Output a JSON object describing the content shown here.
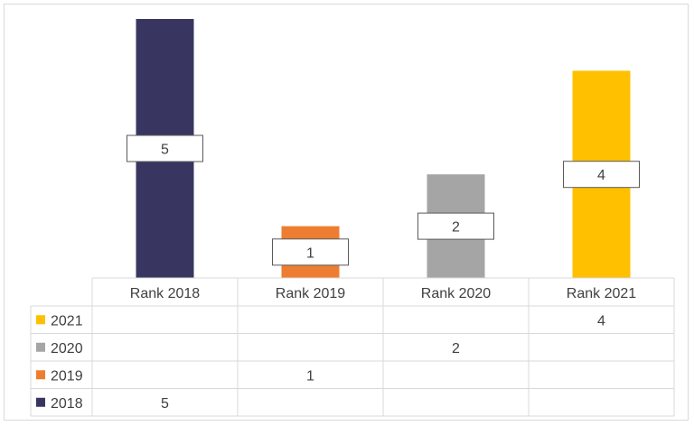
{
  "chart_data": {
    "type": "bar",
    "categories": [
      "Rank 2018",
      "Rank 2019",
      "Rank 2020",
      "Rank 2021"
    ],
    "series": [
      {
        "name": "2018",
        "values": [
          5,
          null,
          null,
          null
        ],
        "color": "#383661"
      },
      {
        "name": "2019",
        "values": [
          null,
          1,
          null,
          null
        ],
        "color": "#ed7d31"
      },
      {
        "name": "2020",
        "values": [
          null,
          null,
          2,
          null
        ],
        "color": "#a5a5a5"
      },
      {
        "name": "2021",
        "values": [
          null,
          null,
          null,
          4
        ],
        "color": "#ffc000"
      }
    ],
    "table_row_order": [
      "2021",
      "2020",
      "2019",
      "2018"
    ],
    "title": "",
    "xlabel": "",
    "ylabel": "",
    "ylim": [
      0,
      5
    ],
    "grid": false,
    "legend": "data-table"
  }
}
